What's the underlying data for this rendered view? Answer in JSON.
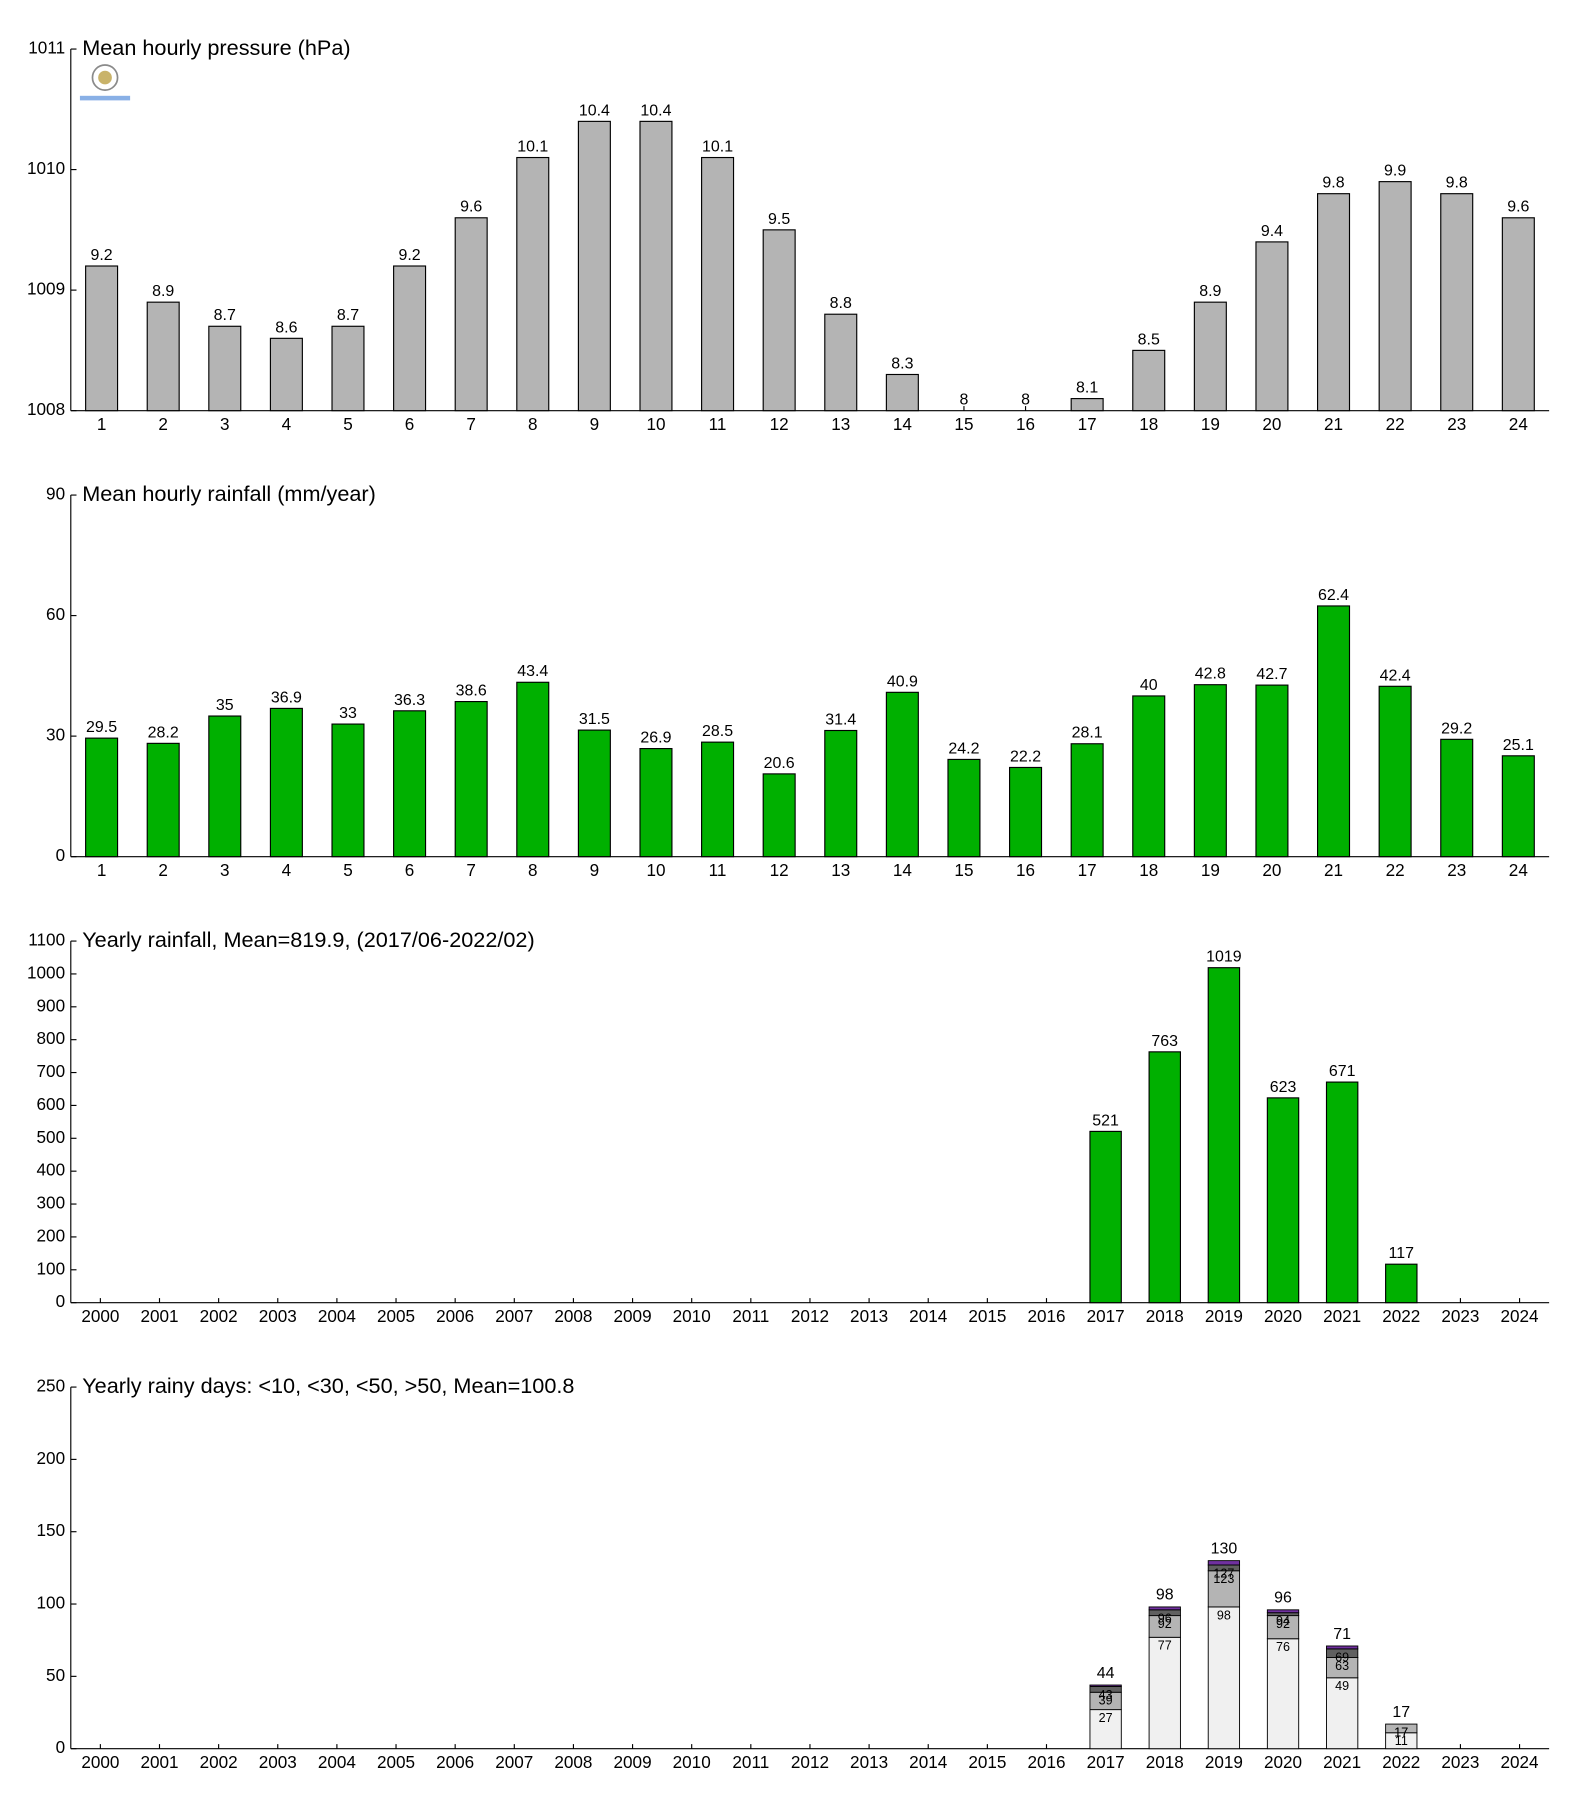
{
  "chart_data": [
    {
      "type": "bar",
      "title": "Mean hourly pressure (hPa)",
      "color": "#b4b4b4",
      "categories": [
        "1",
        "2",
        "3",
        "4",
        "5",
        "6",
        "7",
        "8",
        "9",
        "10",
        "11",
        "12",
        "13",
        "14",
        "15",
        "16",
        "17",
        "18",
        "19",
        "20",
        "21",
        "22",
        "23",
        "24"
      ],
      "values": [
        1009.2,
        1008.9,
        1008.7,
        1008.6,
        1008.7,
        1009.2,
        1009.6,
        1010.1,
        1010.4,
        1010.4,
        1010.1,
        1009.5,
        1008.8,
        1008.3,
        1008,
        1008,
        1008.1,
        1008.5,
        1008.9,
        1009.4,
        1009.8,
        1009.9,
        1009.8,
        1009.6
      ],
      "value_labels": [
        "9.2",
        "8.9",
        "8.7",
        "8.6",
        "8.7",
        "9.2",
        "9.6",
        "10.1",
        "10.4",
        "10.4",
        "10.1",
        "9.5",
        "8.8",
        "8.3",
        "8",
        "8",
        "8.1",
        "8.5",
        "8.9",
        "9.4",
        "9.8",
        "9.9",
        "9.8",
        "9.6"
      ],
      "ylim": [
        1008,
        1011
      ],
      "yticks": [
        1008,
        1009,
        1010,
        1011
      ]
    },
    {
      "type": "bar",
      "title": "Mean hourly rainfall (mm/year)",
      "color": "#00b000",
      "categories": [
        "1",
        "2",
        "3",
        "4",
        "5",
        "6",
        "7",
        "8",
        "9",
        "10",
        "11",
        "12",
        "13",
        "14",
        "15",
        "16",
        "17",
        "18",
        "19",
        "20",
        "21",
        "22",
        "23",
        "24"
      ],
      "values": [
        29.5,
        28.2,
        35,
        36.9,
        33,
        36.3,
        38.6,
        43.4,
        31.5,
        26.9,
        28.5,
        20.6,
        31.4,
        40.9,
        24.2,
        22.2,
        28.1,
        40,
        42.8,
        42.7,
        62.4,
        42.4,
        29.2,
        25.1
      ],
      "ylim": [
        0,
        90
      ],
      "yticks": [
        0,
        30,
        60,
        90
      ]
    },
    {
      "type": "bar",
      "title": "Yearly rainfall, Mean=819.9, (2017/06-2022/02)",
      "color": "#00b000",
      "categories": [
        "2000",
        "2001",
        "2002",
        "2003",
        "2004",
        "2005",
        "2006",
        "2007",
        "2008",
        "2009",
        "2010",
        "2011",
        "2012",
        "2013",
        "2014",
        "2015",
        "2016",
        "2017",
        "2018",
        "2019",
        "2020",
        "2021",
        "2022",
        "2023",
        "2024"
      ],
      "values": [
        null,
        null,
        null,
        null,
        null,
        null,
        null,
        null,
        null,
        null,
        null,
        null,
        null,
        null,
        null,
        null,
        null,
        521,
        763,
        1019,
        623,
        671,
        117,
        null,
        null
      ],
      "ylim": [
        0,
        1100
      ],
      "yticks": [
        0,
        100,
        200,
        300,
        400,
        500,
        600,
        700,
        800,
        900,
        1000,
        1100
      ]
    },
    {
      "type": "stacked_bar",
      "title": "Yearly rainy days: <10, <30, <50, >50, Mean=100.8",
      "categories": [
        "2000",
        "2001",
        "2002",
        "2003",
        "2004",
        "2005",
        "2006",
        "2007",
        "2008",
        "2009",
        "2010",
        "2011",
        "2012",
        "2013",
        "2014",
        "2015",
        "2016",
        "2017",
        "2018",
        "2019",
        "2020",
        "2021",
        "2022",
        "2023",
        "2024"
      ],
      "series": [
        {
          "color": "#f0f0f0",
          "values": [
            null,
            null,
            null,
            null,
            null,
            null,
            null,
            null,
            null,
            null,
            null,
            null,
            null,
            null,
            null,
            null,
            null,
            27,
            77,
            98,
            76,
            49,
            11,
            null,
            null
          ]
        },
        {
          "color": "#b4b4b4",
          "values": [
            null,
            null,
            null,
            null,
            null,
            null,
            null,
            null,
            null,
            null,
            null,
            null,
            null,
            null,
            null,
            null,
            null,
            12,
            15,
            25,
            16,
            14,
            6,
            null,
            null
          ],
          "value_labels": [
            null,
            null,
            null,
            null,
            null,
            null,
            null,
            null,
            null,
            null,
            null,
            null,
            null,
            null,
            null,
            null,
            null,
            "39",
            "92",
            "123",
            "92",
            "63",
            "17",
            null,
            null
          ]
        },
        {
          "color": "#606060",
          "values": [
            null,
            null,
            null,
            null,
            null,
            null,
            null,
            null,
            null,
            null,
            null,
            null,
            null,
            null,
            null,
            null,
            null,
            4,
            4,
            4,
            2,
            6,
            0,
            null,
            null
          ],
          "value_labels": [
            null,
            null,
            null,
            null,
            null,
            null,
            null,
            null,
            null,
            null,
            null,
            null,
            null,
            null,
            null,
            null,
            null,
            "43",
            "96",
            "127",
            "94",
            "69",
            "17",
            null,
            null
          ]
        },
        {
          "color": "#7030a0",
          "values": [
            null,
            null,
            null,
            null,
            null,
            null,
            null,
            null,
            null,
            null,
            null,
            null,
            null,
            null,
            null,
            null,
            null,
            1,
            2,
            3,
            2,
            2,
            0,
            null,
            null
          ]
        }
      ],
      "totals": [
        null,
        null,
        null,
        null,
        null,
        null,
        null,
        null,
        null,
        null,
        null,
        null,
        null,
        null,
        null,
        null,
        null,
        44,
        98,
        130,
        96,
        71,
        17,
        null,
        null
      ],
      "ylim": [
        0,
        250
      ],
      "yticks": [
        0,
        50,
        100,
        150,
        200,
        250
      ]
    }
  ]
}
